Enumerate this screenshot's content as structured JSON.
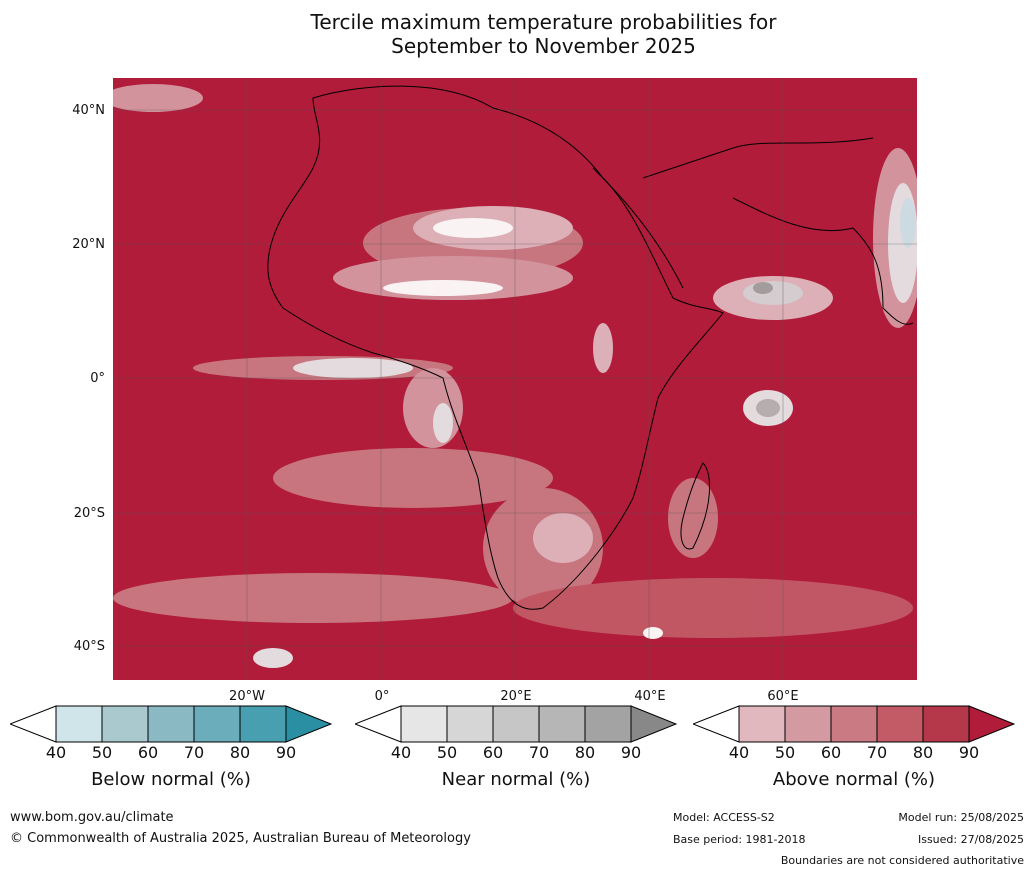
{
  "title_line1": "Tercile maximum temperature probabilities for",
  "title_line2": "September to November 2025",
  "lat_labels": [
    "40°N",
    "20°N",
    "0°",
    "20°S",
    "40°S"
  ],
  "lon_labels": [
    "20°W",
    "0°",
    "20°E",
    "40°E",
    "60°E"
  ],
  "colorbars": [
    {
      "title": "Below normal (%)",
      "ticks": [
        "40",
        "50",
        "60",
        "70",
        "80",
        "90"
      ],
      "colors": [
        "#cfe5ea",
        "#a9c9cf",
        "#8ab8c3",
        "#6cadbb",
        "#479fb0",
        "#2a8fa3"
      ]
    },
    {
      "title": "Near normal (%)",
      "ticks": [
        "40",
        "50",
        "60",
        "70",
        "80",
        "90"
      ],
      "colors": [
        "#e6e6e6",
        "#d6d6d6",
        "#c6c6c6",
        "#b6b6b6",
        "#a3a3a3",
        "#888888"
      ]
    },
    {
      "title": "Above normal (%)",
      "ticks": [
        "40",
        "50",
        "60",
        "70",
        "80",
        "90"
      ],
      "colors": [
        "#e0b8be",
        "#d49aa2",
        "#c97a83",
        "#c25b66",
        "#b4384a",
        "#b01c3a"
      ]
    }
  ],
  "footer": {
    "url": "www.bom.gov.au/climate",
    "copyright": "© Commonwealth of Australia 2025, Australian Bureau of Meteorology",
    "model": "Model: ACCESS-S2",
    "base_period": "Base period: 1981-2018",
    "model_run": "Model run: 25/08/2025",
    "issued": "Issued: 27/08/2025",
    "disclaimer": "Boundaries are not considered authoritative"
  }
}
